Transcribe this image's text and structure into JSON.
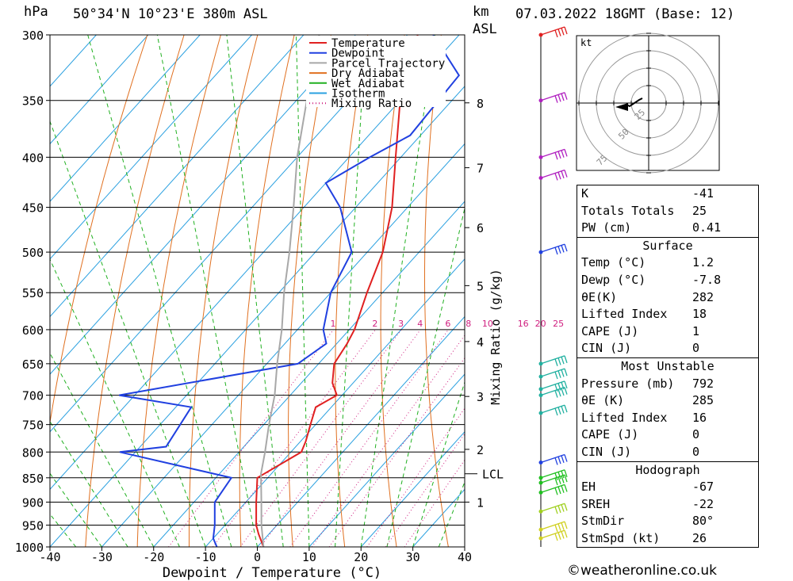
{
  "header": {
    "hpa": "hPa",
    "location": "50°34'N 10°23'E 380m ASL",
    "km": "km",
    "asl": "ASL",
    "datetime": "07.03.2022 18GMT (Base: 12)"
  },
  "chart_data": {
    "type": "line",
    "pressure_levels": [
      300,
      350,
      400,
      450,
      500,
      550,
      600,
      650,
      700,
      750,
      800,
      850,
      900,
      950,
      1000
    ],
    "temperature_ticks": [
      -40,
      -30,
      -20,
      -10,
      0,
      10,
      20,
      30,
      40
    ],
    "xlabel": "Dewpoint / Temperature (°C)",
    "ylabel": "Mixing Ratio (g/kg)",
    "xlim": [
      -40,
      40
    ],
    "ylim_hpa": [
      1000,
      300
    ],
    "skew": "skew-T log-p",
    "km_ticks": [
      {
        "label": "1",
        "p": 900
      },
      {
        "label": "2",
        "p": 795
      },
      {
        "label": "3",
        "p": 702
      },
      {
        "label": "4",
        "p": 617
      },
      {
        "label": "5",
        "p": 541
      },
      {
        "label": "6",
        "p": 472
      },
      {
        "label": "7",
        "p": 410
      },
      {
        "label": "8",
        "p": 352
      }
    ],
    "lcl": {
      "label": "LCL",
      "p": 842
    },
    "mixing_ratio_labels": [
      "1",
      "2",
      "3",
      "4",
      "6",
      "8",
      "10",
      "16",
      "20",
      "25"
    ],
    "legend": [
      "Temperature",
      "Dewpoint",
      "Parcel Trajectory",
      "Dry Adiabat",
      "Wet Adiabat",
      "Isotherm",
      "Mixing Ratio"
    ],
    "legend_position": "top-right",
    "series": [
      {
        "name": "Temperature",
        "color": "#e02020",
        "points": [
          [
            1000,
            1.2
          ],
          [
            970,
            -2
          ],
          [
            950,
            -4
          ],
          [
            900,
            -8
          ],
          [
            850,
            -12
          ],
          [
            800,
            -8
          ],
          [
            780,
            -9
          ],
          [
            750,
            -11
          ],
          [
            720,
            -13
          ],
          [
            700,
            -11
          ],
          [
            680,
            -14
          ],
          [
            650,
            -17
          ],
          [
            620,
            -18
          ],
          [
            600,
            -19
          ],
          [
            550,
            -23
          ],
          [
            500,
            -27
          ],
          [
            450,
            -33
          ],
          [
            400,
            -41
          ],
          [
            350,
            -50
          ],
          [
            300,
            -58
          ]
        ]
      },
      {
        "name": "Dewpoint",
        "color": "#2040e0",
        "points": [
          [
            1000,
            -7.8
          ],
          [
            980,
            -10
          ],
          [
            950,
            -12
          ],
          [
            900,
            -16
          ],
          [
            850,
            -17
          ],
          [
            800,
            -43
          ],
          [
            790,
            -35
          ],
          [
            720,
            -37
          ],
          [
            700,
            -53
          ],
          [
            650,
            -24
          ],
          [
            620,
            -22
          ],
          [
            600,
            -25
          ],
          [
            550,
            -30
          ],
          [
            500,
            -33
          ],
          [
            450,
            -43
          ],
          [
            425,
            -50
          ],
          [
            400,
            -46
          ],
          [
            380,
            -42
          ],
          [
            330,
            -43
          ],
          [
            300,
            -55
          ]
        ]
      },
      {
        "name": "Parcel Trajectory",
        "color": "#a8a8a8",
        "points": [
          [
            1000,
            1.2
          ],
          [
            950,
            -3
          ],
          [
            900,
            -7
          ],
          [
            842,
            -12
          ],
          [
            800,
            -15
          ],
          [
            750,
            -19
          ],
          [
            700,
            -23
          ],
          [
            650,
            -28
          ],
          [
            600,
            -33
          ],
          [
            550,
            -39
          ],
          [
            500,
            -45
          ],
          [
            450,
            -52
          ],
          [
            400,
            -60
          ],
          [
            350,
            -68
          ],
          [
            300,
            -77
          ]
        ]
      }
    ]
  },
  "hodograph": {
    "unit": "kt",
    "rings": [
      "25",
      "50",
      "75"
    ]
  },
  "indices": {
    "top": [
      {
        "k": "K",
        "v": "-41"
      },
      {
        "k": "Totals Totals",
        "v": "25"
      },
      {
        "k": "PW (cm)",
        "v": "0.41"
      }
    ],
    "surface_title": "Surface",
    "surface": [
      {
        "k": "Temp (°C)",
        "v": "1.2"
      },
      {
        "k": "Dewp (°C)",
        "v": "-7.8"
      },
      {
        "k": "θE(K)",
        "v": "282"
      },
      {
        "k": "Lifted Index",
        "v": "18"
      },
      {
        "k": "CAPE (J)",
        "v": "1"
      },
      {
        "k": "CIN (J)",
        "v": "0"
      }
    ],
    "mu_title": "Most Unstable",
    "mu": [
      {
        "k": "Pressure (mb)",
        "v": "792"
      },
      {
        "k": "θE (K)",
        "v": "285"
      },
      {
        "k": "Lifted Index",
        "v": "16"
      },
      {
        "k": "CAPE (J)",
        "v": "0"
      },
      {
        "k": "CIN (J)",
        "v": "0"
      }
    ],
    "hodo_title": "Hodograph",
    "hodo": [
      {
        "k": "EH",
        "v": "-67"
      },
      {
        "k": "SREH",
        "v": "-22"
      },
      {
        "k": "StmDir",
        "v": "80°"
      },
      {
        "k": "StmSpd (kt)",
        "v": "26"
      }
    ]
  },
  "wind_profile": [
    {
      "p": 300,
      "color": "#e02020"
    },
    {
      "p": 350,
      "color": "#b020c0"
    },
    {
      "p": 400,
      "color": "#b020c0"
    },
    {
      "p": 420,
      "color": "#b020c0"
    },
    {
      "p": 500,
      "color": "#2040e0"
    },
    {
      "p": 650,
      "color": "#20b0a0"
    },
    {
      "p": 670,
      "color": "#20b0a0"
    },
    {
      "p": 690,
      "color": "#20b0a0"
    },
    {
      "p": 700,
      "color": "#20b0a0"
    },
    {
      "p": 730,
      "color": "#20b0a0"
    },
    {
      "p": 820,
      "color": "#2040e0"
    },
    {
      "p": 850,
      "color": "#20c020"
    },
    {
      "p": 860,
      "color": "#20c020"
    },
    {
      "p": 880,
      "color": "#20c020"
    },
    {
      "p": 920,
      "color": "#a0d020"
    },
    {
      "p": 960,
      "color": "#d0d020"
    },
    {
      "p": 980,
      "color": "#d0d020"
    }
  ],
  "credit": "©weatheronline.co.uk"
}
